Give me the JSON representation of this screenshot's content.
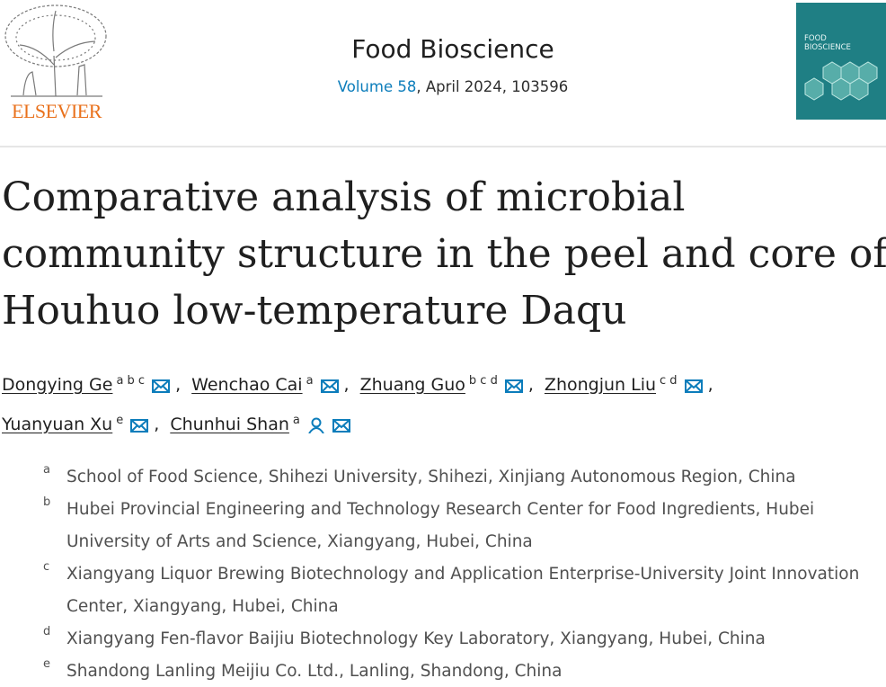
{
  "header": {
    "publisher": "ELSEVIER",
    "journal": "Food Bioscience",
    "volume": "Volume 58",
    "issue_details": ", April 2024, 103596",
    "cover_title": [
      "FOOD",
      "BIOSCIENCE"
    ]
  },
  "article": {
    "title": [
      "Comparative analysis of microbial",
      "community structure in the peel and core of",
      "Houhuo low-temperature Daqu"
    ],
    "author_separator": ",",
    "authors": [
      {
        "name": "Dongying Ge",
        "affiliations": "a b c"
      },
      {
        "name": "Wenchao Cai",
        "affiliations": "a"
      },
      {
        "name": "Zhuang Guo",
        "affiliations": "b c d"
      },
      {
        "name": "Zhongjun Liu",
        "affiliations": "c d"
      },
      {
        "name": "Yuanyuan Xu",
        "affiliations": "e"
      },
      {
        "name": "Chunhui Shan",
        "affiliations": "a",
        "corresponding": true
      }
    ],
    "affiliations": [
      {
        "label": "a",
        "text": "School of Food Science, Shihezi University, Shihezi, Xinjiang Autonomous Region, China"
      },
      {
        "label": "b",
        "text": "Hubei Provincial Engineering and Technology Research Center for Food Ingredients, Hubei University of Arts and Science, Xiangyang, Hubei, China"
      },
      {
        "label": "c",
        "text": "Xiangyang Liquor Brewing Biotechnology and Application Enterprise-University Joint Innovation Center, Xiangyang, Hubei, China"
      },
      {
        "label": "d",
        "text": "Xiangyang Fen-flavor Baijiu Biotechnology Key Laboratory, Xiangyang, Hubei, China"
      },
      {
        "label": "e",
        "text": "Shandong Lanling Meijiu Co. Ltd., Lanling, Shandong, China"
      }
    ]
  }
}
